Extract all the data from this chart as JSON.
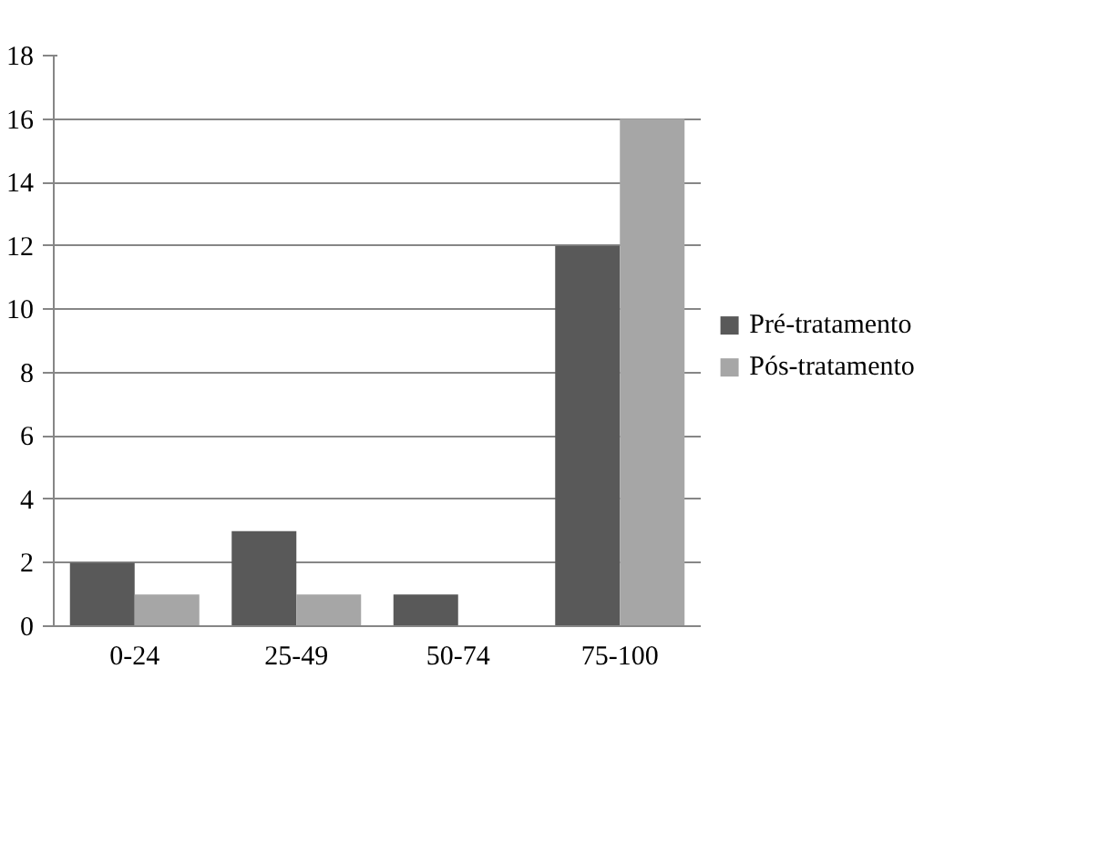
{
  "chart_data": {
    "type": "bar",
    "categories": [
      "0-24",
      "25-49",
      "50-74",
      "75-100"
    ],
    "series": [
      {
        "name": "Pré-tratamento",
        "color": "#595959",
        "values": [
          2,
          3,
          1,
          12
        ]
      },
      {
        "name": "Pós-tratamento",
        "color": "#a6a6a6",
        "values": [
          1,
          1,
          0,
          16
        ]
      }
    ],
    "ylim": [
      0,
      18
    ],
    "yticks": [
      0,
      2,
      4,
      6,
      8,
      10,
      12,
      14,
      16,
      18
    ],
    "grid": "y",
    "legend": "right"
  }
}
